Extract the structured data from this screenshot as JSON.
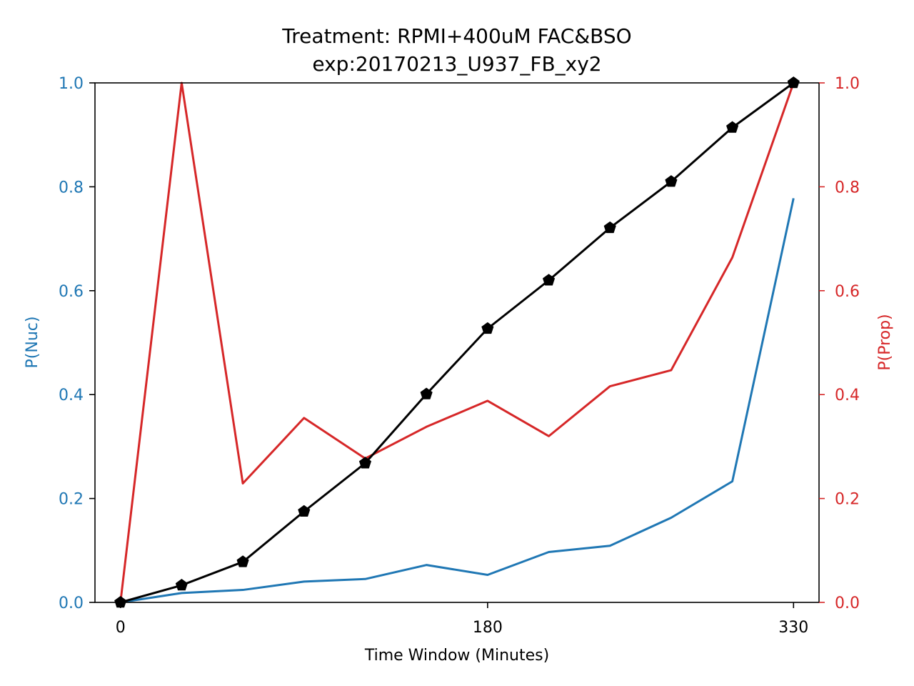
{
  "colors": {
    "left_axis": "#1f77b4",
    "right_axis": "#d62728",
    "cumulative": "#000000"
  },
  "chart_data": {
    "type": "line",
    "title": "Treatment: RPMI+400uM FAC&BSO",
    "subtitle": "exp:20170213_U937_FB_xy2",
    "xlabel": "Time Window (Minutes)",
    "ylabel_left": "P(Nuc)",
    "ylabel_right": "P(Prop)",
    "xlim": [
      -12.5,
      342.5
    ],
    "ylim_left": [
      0,
      1
    ],
    "ylim_right": [
      0,
      1
    ],
    "x_ticks": [
      0,
      180,
      330
    ],
    "x_tick_labels": [
      "0",
      "180",
      "330"
    ],
    "y_ticks_left": [
      0,
      0.2,
      0.4,
      0.6,
      0.8,
      1.0
    ],
    "y_tick_labels_left": [
      "0.0",
      "0.2",
      "0.4",
      "0.6",
      "0.8",
      "1.0"
    ],
    "y_ticks_right": [
      0,
      0.2,
      0.4,
      0.6,
      0.8,
      1.0
    ],
    "y_tick_labels_right": [
      "0.0",
      "0.2",
      "0.4",
      "0.6",
      "0.8",
      "1.0"
    ],
    "grid": false,
    "x": [
      0,
      30,
      60,
      90,
      120,
      150,
      180,
      210,
      240,
      270,
      300,
      330
    ],
    "series": [
      {
        "key": "p_nuc",
        "axis": "left",
        "color": "#1f77b4",
        "values": [
          0.0,
          0.018,
          0.024,
          0.04,
          0.045,
          0.072,
          0.053,
          0.097,
          0.109,
          0.163,
          0.233,
          0.778
        ]
      },
      {
        "key": "p_prop",
        "axis": "right",
        "color": "#d62728",
        "values": [
          0.0,
          1.0,
          0.229,
          0.355,
          0.277,
          0.338,
          0.388,
          0.32,
          0.416,
          0.447,
          0.664,
          1.0
        ]
      },
      {
        "key": "cumulative",
        "axis": "left",
        "color": "#000000",
        "marker": "pentagon",
        "values": [
          0.0,
          0.033,
          0.078,
          0.175,
          0.268,
          0.401,
          0.527,
          0.62,
          0.721,
          0.81,
          0.914,
          1.0
        ]
      }
    ]
  }
}
